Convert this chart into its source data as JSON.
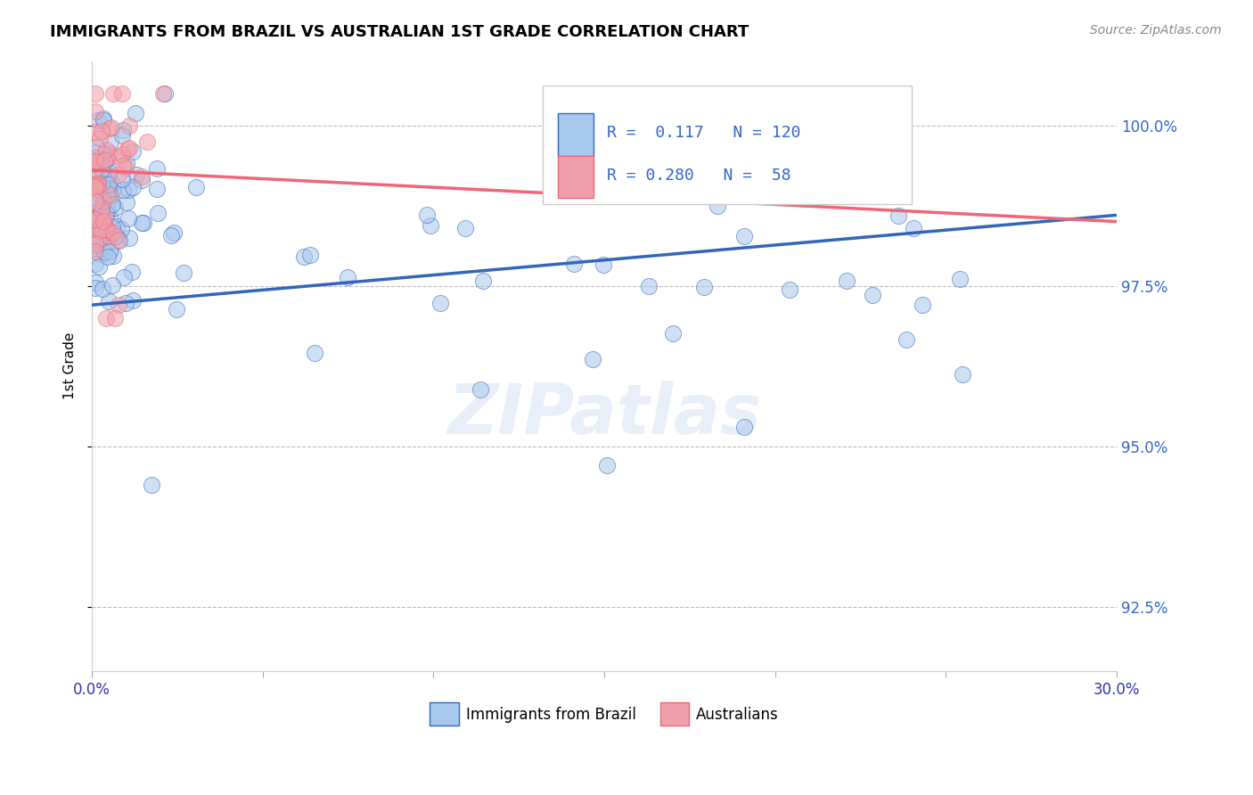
{
  "title": "IMMIGRANTS FROM BRAZIL VS AUSTRALIAN 1ST GRADE CORRELATION CHART",
  "source_text": "Source: ZipAtlas.com",
  "xlabel_brazil": "Immigrants from Brazil",
  "xlabel_australians": "Australians",
  "ylabel": "1st Grade",
  "xlim": [
    0.0,
    0.3
  ],
  "ylim": [
    0.915,
    1.01
  ],
  "ytick_values": [
    0.925,
    0.95,
    0.975,
    1.0
  ],
  "ytick_labels": [
    "92.5%",
    "95.0%",
    "97.5%",
    "100.0%"
  ],
  "r_brazil": 0.117,
  "n_brazil": 120,
  "r_australian": 0.28,
  "n_australian": 58,
  "color_brazil": "#A8C8EE",
  "color_australian": "#F0A0AA",
  "trendline_color_brazil": "#3366BB",
  "trendline_color_australian": "#EE6677",
  "watermark": "ZIPatlas",
  "brazil_trendline": [
    0.972,
    0.986
  ],
  "aus_trendline": [
    0.993,
    0.985
  ],
  "legend_r1": "R =  0.117   N = 120",
  "legend_r2": "R = 0.280   N =  58"
}
